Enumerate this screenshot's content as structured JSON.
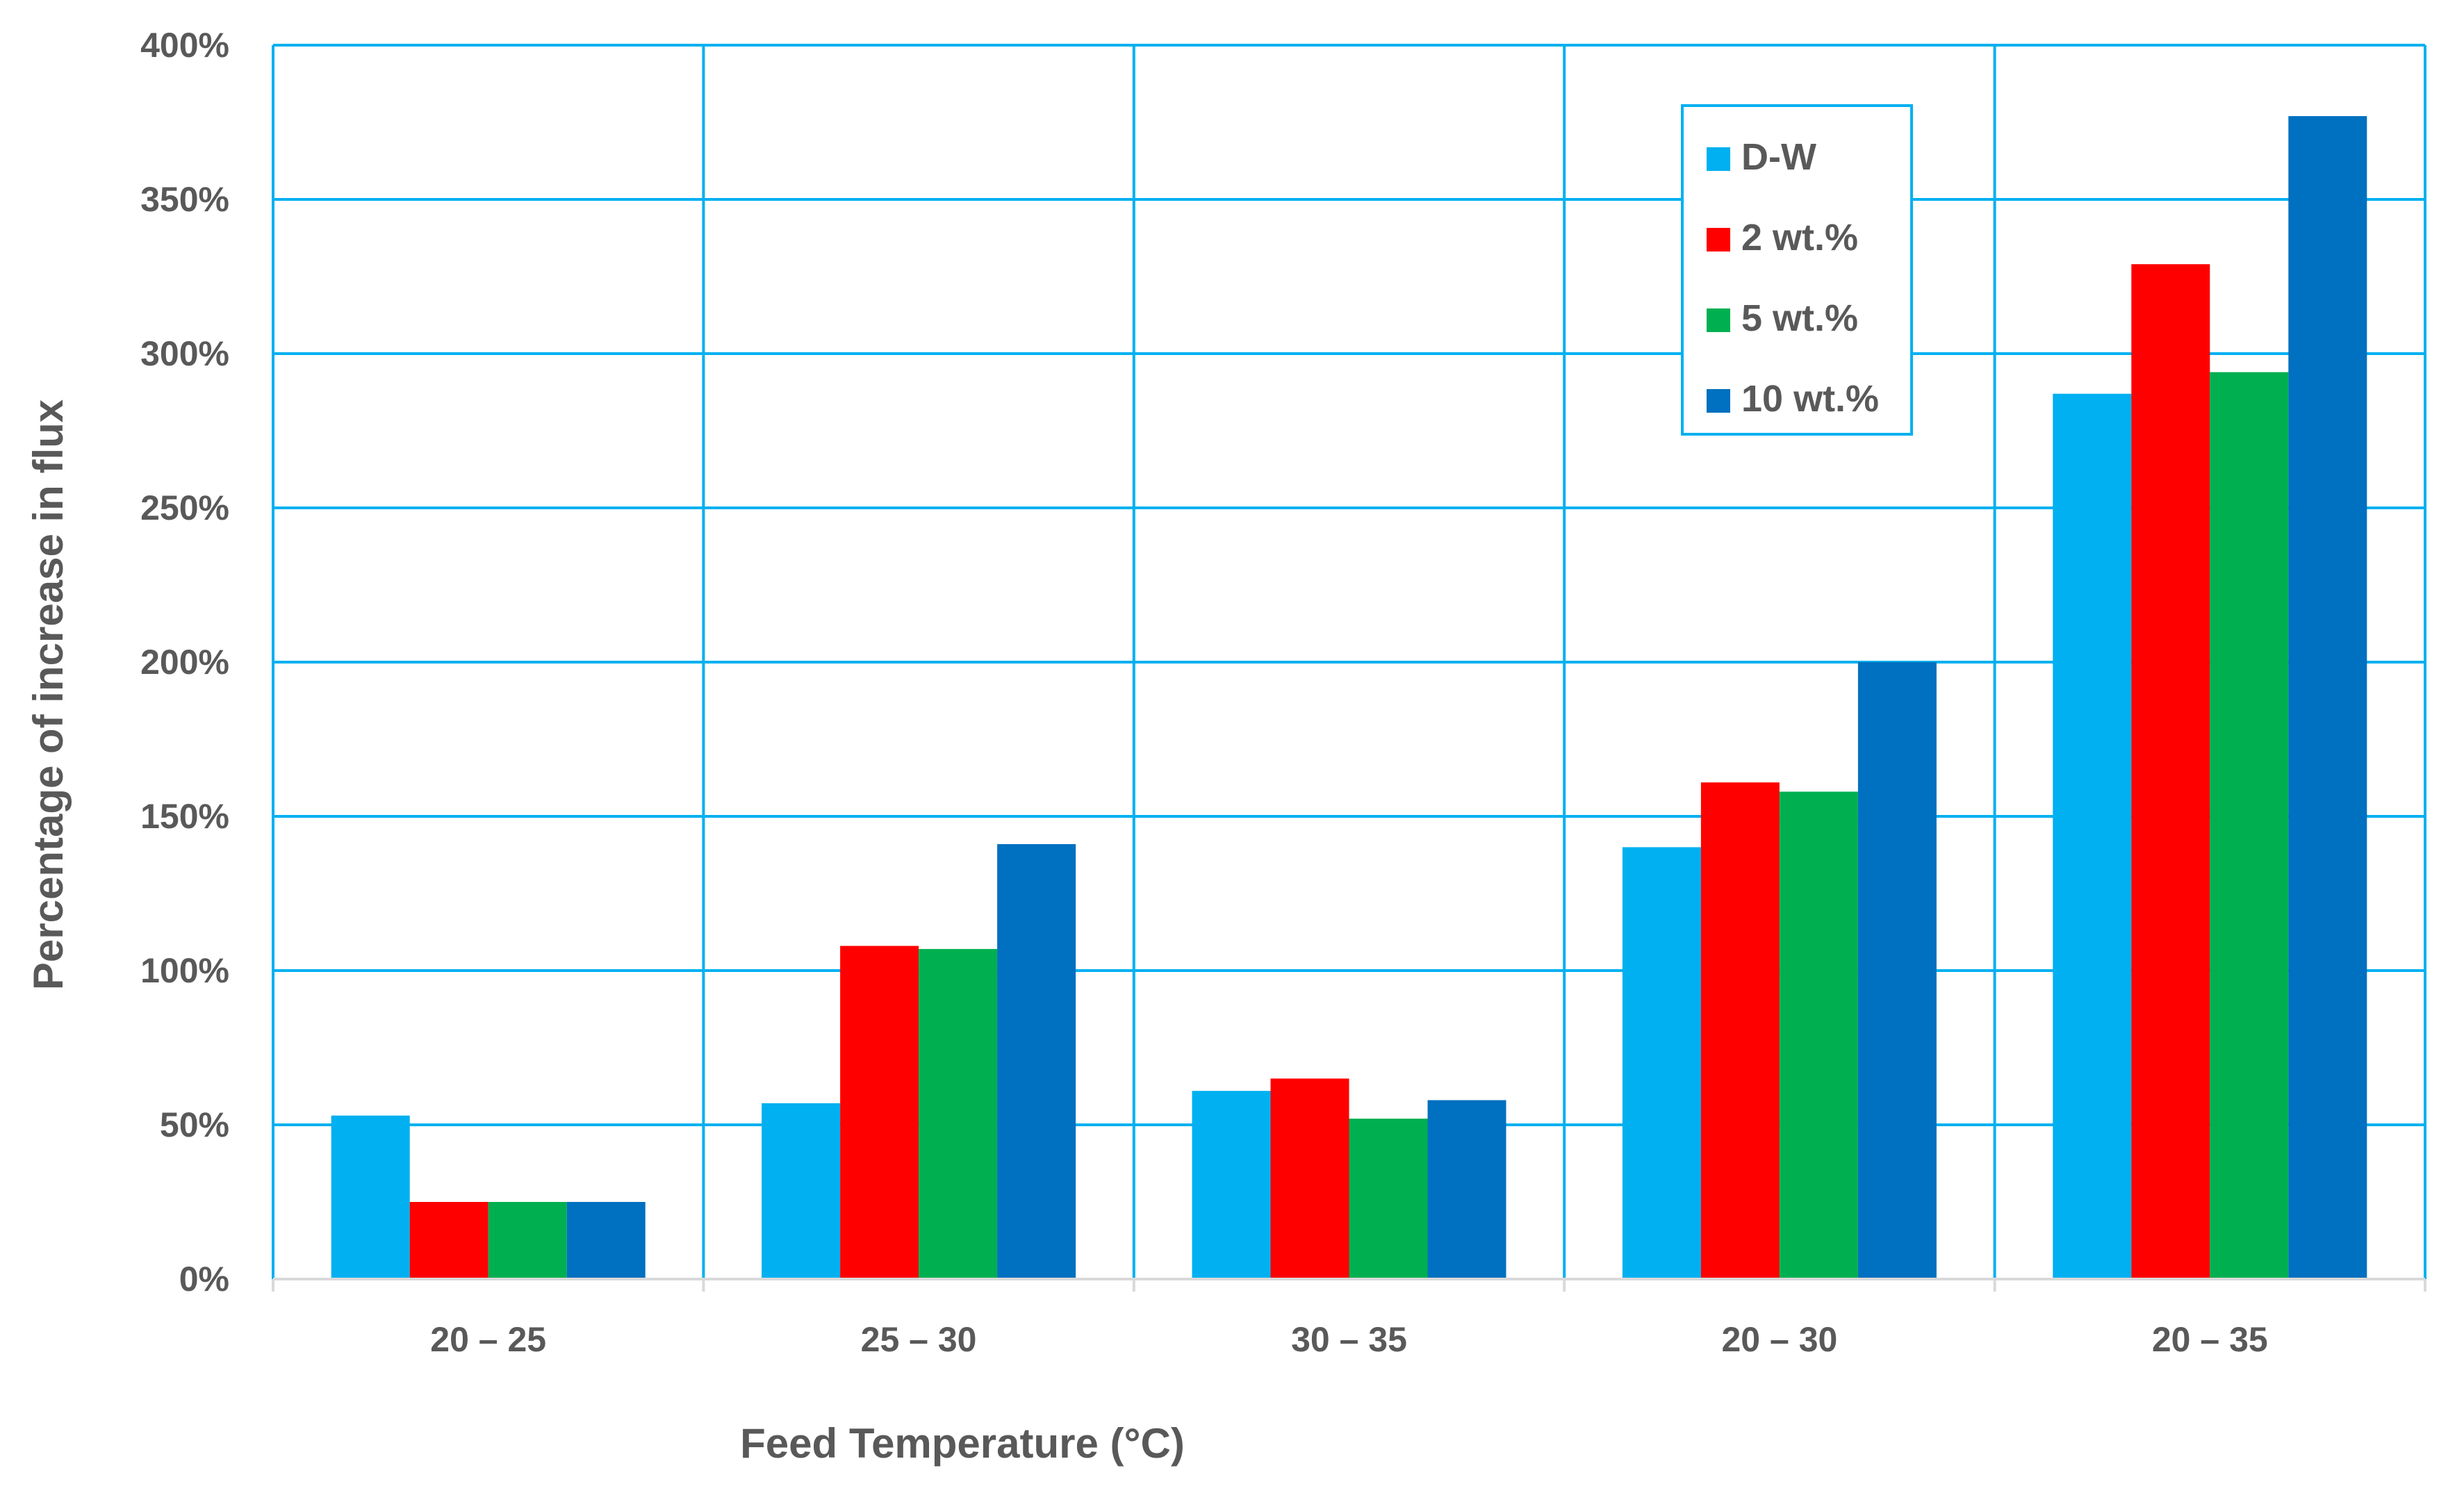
{
  "chart_data": {
    "type": "bar",
    "title": "",
    "xlabel": "Feed Temperature (°C)",
    "ylabel": "Percentage of increase in flux",
    "categories": [
      "20 – 25",
      "25 – 30",
      "30 – 35",
      "20 – 30",
      "20 – 35"
    ],
    "series": [
      {
        "name": "D-W",
        "color": "#00B0F0",
        "values": [
          53,
          57,
          61,
          140,
          287
        ]
      },
      {
        "name": "2 wt.%",
        "color": "#FF0000",
        "values": [
          25,
          108,
          65,
          161,
          329
        ]
      },
      {
        "name": "5 wt.%",
        "color": "#00B050",
        "values": [
          25,
          107,
          52,
          158,
          294
        ]
      },
      {
        "name": "10 wt.%",
        "color": "#0070C0",
        "values": [
          25,
          141,
          58,
          200,
          377
        ]
      }
    ],
    "ylim": [
      0,
      400
    ],
    "yticks": [
      0,
      50,
      100,
      150,
      200,
      250,
      300,
      350,
      400
    ],
    "ytick_labels": [
      "0%",
      "50%",
      "100%",
      "150%",
      "200%",
      "250%",
      "300%",
      "350%",
      "400%"
    ],
    "grid": true,
    "grid_color": "#00B0F0",
    "legend_position": "top-right"
  }
}
